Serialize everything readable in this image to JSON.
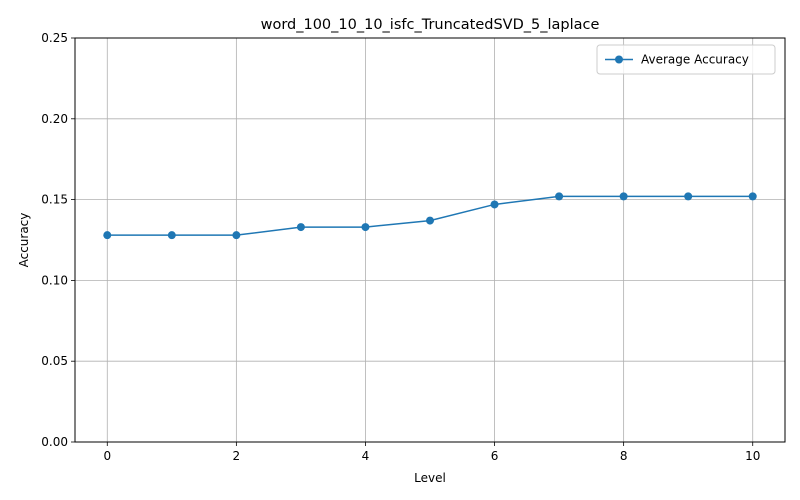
{
  "chart_data": {
    "type": "line",
    "title": "word_100_10_10_isfc_TruncatedSVD_5_laplace",
    "xlabel": "Level",
    "ylabel": "Accuracy",
    "xlim": [
      -0.5,
      10.5
    ],
    "ylim": [
      0,
      0.25
    ],
    "xticks": [
      0,
      2,
      4,
      6,
      8,
      10
    ],
    "yticks": [
      0.0,
      0.05,
      0.1,
      0.15,
      0.2,
      0.25
    ],
    "ytick_labels": [
      "0.00",
      "0.05",
      "0.10",
      "0.15",
      "0.20",
      "0.25"
    ],
    "grid": true,
    "legend_position": "top-right",
    "series": [
      {
        "name": "Average Accuracy",
        "color": "#1f77b4",
        "marker": "circle",
        "x": [
          0,
          1,
          2,
          3,
          4,
          5,
          6,
          7,
          8,
          9,
          10
        ],
        "y": [
          0.128,
          0.128,
          0.128,
          0.133,
          0.133,
          0.137,
          0.147,
          0.152,
          0.152,
          0.152,
          0.152
        ]
      }
    ]
  }
}
